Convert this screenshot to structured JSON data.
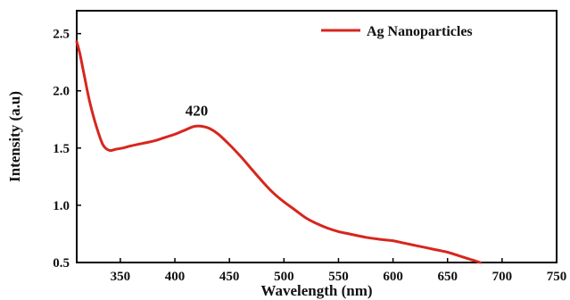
{
  "chart_data": {
    "type": "line",
    "xlabel": "Wavelength (nm)",
    "ylabel": "Intensity (a.u)",
    "xlim": [
      310,
      750
    ],
    "ylim": [
      0.5,
      2.7
    ],
    "xticks": [
      "350",
      "400",
      "450",
      "500",
      "550",
      "600",
      "650",
      "700",
      "750"
    ],
    "yticks": [
      "0.5",
      "1.0",
      "1.5",
      "2.0",
      "2.5"
    ],
    "legend_position": "top-right",
    "grid": false,
    "annotations": [
      {
        "text": "420",
        "x": 420,
        "y": 1.69
      }
    ],
    "series": [
      {
        "name": "Ag Nanoparticles",
        "color": "#d7261e",
        "x": [
          310,
          313,
          317,
          322,
          328,
          334,
          340,
          346,
          352,
          360,
          370,
          380,
          390,
          400,
          410,
          418,
          425,
          432,
          440,
          450,
          460,
          470,
          480,
          490,
          500,
          510,
          520,
          530,
          540,
          550,
          560,
          575,
          590,
          600,
          610,
          620,
          630,
          640,
          650,
          660,
          670,
          680
        ],
        "y": [
          2.43,
          2.32,
          2.13,
          1.9,
          1.69,
          1.53,
          1.48,
          1.49,
          1.5,
          1.52,
          1.54,
          1.56,
          1.59,
          1.62,
          1.66,
          1.69,
          1.69,
          1.67,
          1.62,
          1.53,
          1.43,
          1.32,
          1.21,
          1.11,
          1.03,
          0.96,
          0.89,
          0.84,
          0.8,
          0.77,
          0.75,
          0.72,
          0.7,
          0.69,
          0.67,
          0.65,
          0.63,
          0.61,
          0.59,
          0.56,
          0.53,
          0.5
        ]
      }
    ]
  }
}
